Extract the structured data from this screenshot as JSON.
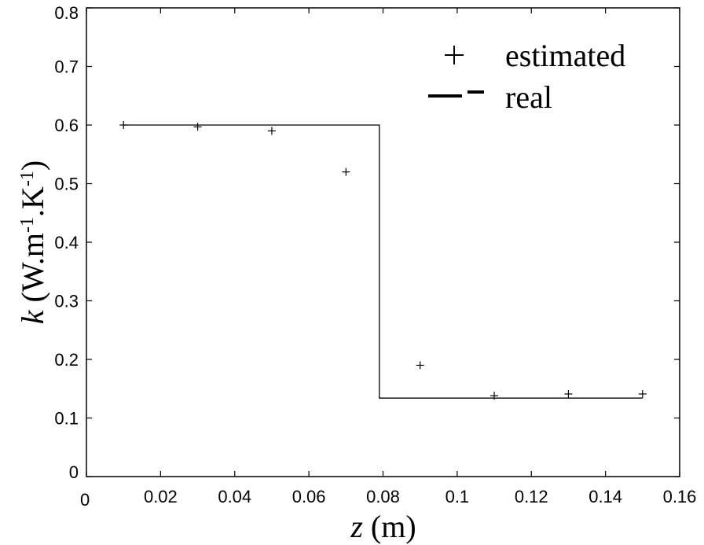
{
  "chart_data": {
    "type": "line",
    "xlabel": {
      "var": "z",
      "rest": " (m)"
    },
    "ylabel": {
      "var": "k",
      "rest": " (W.m",
      "sup1": "-1",
      "mid": ".K",
      "sup2": "-1",
      "end": ")"
    },
    "xlim": [
      0,
      0.16
    ],
    "ylim": [
      0,
      0.8
    ],
    "xticks": [
      0,
      0.02,
      0.04,
      0.06,
      0.08,
      0.1,
      0.12,
      0.14,
      0.16
    ],
    "xtick_labels": [
      "0",
      "0.02",
      "0.04",
      "0.06",
      "0.08",
      "0.1",
      "0.12",
      "0.14",
      "0.16"
    ],
    "yticks": [
      0,
      0.1,
      0.2,
      0.3,
      0.4,
      0.5,
      0.6,
      0.7,
      0.8
    ],
    "ytick_labels": [
      "0",
      "0.1",
      "0.2",
      "0.3",
      "0.4",
      "0.5",
      "0.6",
      "0.7",
      "0.8"
    ],
    "grid": false,
    "legend_position": "top-right",
    "series": [
      {
        "name": "estimated",
        "marker": "+",
        "x": [
          0.01,
          0.03,
          0.05,
          0.07,
          0.09,
          0.11,
          0.13,
          0.15
        ],
        "y": [
          0.6,
          0.597,
          0.59,
          0.52,
          0.19,
          0.138,
          0.141,
          0.141
        ]
      },
      {
        "name": "real",
        "style": "solid",
        "x": [
          0.01,
          0.079,
          0.079,
          0.15
        ],
        "y": [
          0.6,
          0.6,
          0.134,
          0.134
        ]
      }
    ],
    "colors": {
      "line": "#000000",
      "marker": "#000000",
      "axes": "#000000"
    }
  }
}
